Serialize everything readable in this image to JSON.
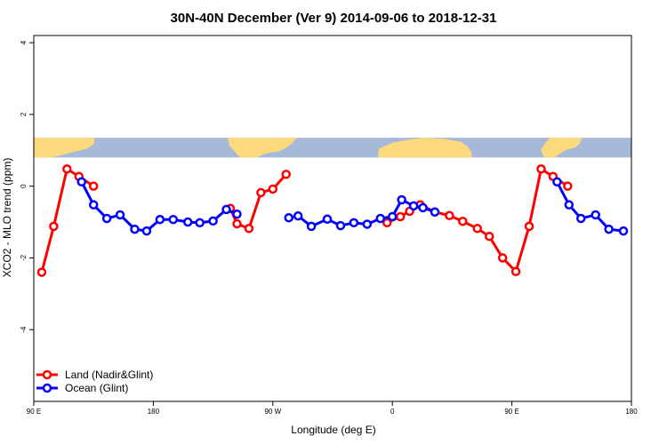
{
  "chart_data": {
    "type": "line",
    "title": "30N-40N December (Ver 9)   2014-09-06 to 2018-12-31",
    "xlabel": "Longitude (deg E)",
    "ylabel": "XCO2 - MLO trend (ppm)",
    "xlim": [
      90,
      540
    ],
    "ylim": [
      -6,
      4.2
    ],
    "x_ticks": [
      {
        "value": 90,
        "label": "90 E"
      },
      {
        "value": 180,
        "label": "180"
      },
      {
        "value": 270,
        "label": "90 W"
      },
      {
        "value": 360,
        "label": "0"
      },
      {
        "value": 450,
        "label": "90 E"
      },
      {
        "value": 540,
        "label": "180"
      }
    ],
    "y_ticks": [
      {
        "value": 4,
        "label": "4"
      },
      {
        "value": 2,
        "label": "2"
      },
      {
        "value": 0,
        "label": "0"
      },
      {
        "value": -2,
        "label": "-2"
      },
      {
        "value": -4,
        "label": "-4"
      }
    ],
    "legend_position": "bottom-left",
    "map_strip": {
      "ymin": 0.8,
      "ymax": 1.35,
      "ocean_color": "#a7b9d8",
      "land_color": "#fbd97c"
    },
    "series": [
      {
        "name": "Land (Nadir&Glint)",
        "color": "#ff0000",
        "segments": [
          [
            [
              96,
              -2.4
            ],
            [
              105,
              -1.12
            ],
            [
              115,
              0.48
            ],
            [
              124,
              0.27
            ],
            [
              135,
              0.0
            ]
          ],
          [
            [
              238,
              -0.62
            ],
            [
              243,
              -1.05
            ],
            [
              252,
              -1.18
            ],
            [
              261,
              -0.18
            ],
            [
              270,
              -0.08
            ],
            [
              280,
              0.33
            ]
          ],
          [
            [
              356,
              -1.02
            ],
            [
              366,
              -0.85
            ],
            [
              373,
              -0.7
            ],
            [
              381,
              -0.52
            ],
            [
              392,
              -0.72
            ],
            [
              403,
              -0.82
            ],
            [
              413,
              -0.98
            ],
            [
              424,
              -1.18
            ],
            [
              433,
              -1.4
            ],
            [
              443,
              -2.0
            ],
            [
              453,
              -2.38
            ],
            [
              463,
              -1.12
            ],
            [
              472,
              0.48
            ],
            [
              481,
              0.27
            ],
            [
              492,
              0.0
            ]
          ]
        ]
      },
      {
        "name": "Ocean (Glint)",
        "color": "#0000ff",
        "segments": [
          [
            [
              126,
              0.12
            ],
            [
              135,
              -0.52
            ],
            [
              145,
              -0.9
            ],
            [
              155,
              -0.8
            ],
            [
              166,
              -1.2
            ],
            [
              175,
              -1.25
            ],
            [
              185,
              -0.93
            ],
            [
              195,
              -0.93
            ],
            [
              206,
              -1.0
            ],
            [
              215,
              -1.02
            ],
            [
              225,
              -0.97
            ],
            [
              235,
              -0.65
            ],
            [
              243,
              -0.78
            ]
          ],
          [
            [
              282,
              -0.88
            ],
            [
              289,
              -0.83
            ],
            [
              299,
              -1.12
            ],
            [
              311,
              -0.92
            ],
            [
              321,
              -1.1
            ],
            [
              331,
              -1.02
            ],
            [
              341,
              -1.06
            ],
            [
              351,
              -0.9
            ],
            [
              360,
              -0.85
            ],
            [
              367,
              -0.38
            ],
            [
              376,
              -0.55
            ],
            [
              383,
              -0.6
            ],
            [
              392,
              -0.72
            ]
          ],
          [
            [
              484,
              0.12
            ],
            [
              493,
              -0.52
            ],
            [
              502,
              -0.9
            ],
            [
              513,
              -0.8
            ],
            [
              523,
              -1.2
            ],
            [
              534,
              -1.25
            ]
          ]
        ]
      }
    ]
  }
}
